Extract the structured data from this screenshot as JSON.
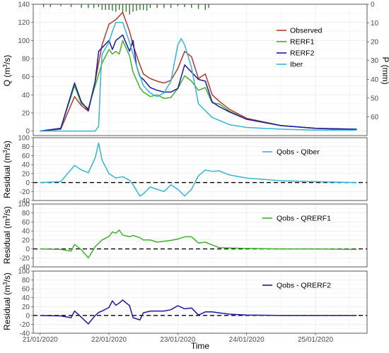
{
  "chart_data": [
    {
      "type": "line",
      "panel": "discharge",
      "ylabel": "Q (m3/s)",
      "ylim": [
        -5,
        140
      ],
      "yticks": [
        0,
        20,
        40,
        60,
        80,
        100,
        120,
        140
      ],
      "y2label": "P (mm)",
      "y2lim": [
        0,
        70
      ],
      "y2ticks": [
        0,
        10,
        20,
        30,
        40,
        50,
        60
      ],
      "x_start": "2020-01-21T00:00",
      "xlim_days": [
        -0.1,
        4.75
      ],
      "xticks": [
        "21/01/2020",
        "22/01/2020",
        "23/01/2020",
        "24/01/2020",
        "25/01/2020"
      ],
      "grid": true,
      "legend_position": "right",
      "precipitation_mm": [
        [
          0.05,
          1.5
        ],
        [
          0.15,
          1.5
        ],
        [
          0.3,
          1
        ],
        [
          0.45,
          1.5
        ],
        [
          0.6,
          2
        ],
        [
          0.7,
          2
        ],
        [
          0.78,
          2
        ],
        [
          0.85,
          1.5
        ],
        [
          0.9,
          3
        ],
        [
          0.95,
          3
        ],
        [
          1.0,
          3
        ],
        [
          1.05,
          3.5
        ],
        [
          1.1,
          4
        ],
        [
          1.15,
          3
        ],
        [
          1.2,
          5
        ],
        [
          1.25,
          4
        ],
        [
          1.3,
          5.5
        ],
        [
          1.35,
          4
        ],
        [
          1.4,
          3.5
        ],
        [
          1.45,
          3
        ],
        [
          1.5,
          3
        ],
        [
          1.55,
          3.5
        ],
        [
          1.6,
          2
        ],
        [
          1.7,
          2
        ],
        [
          1.8,
          2
        ],
        [
          1.9,
          2
        ],
        [
          2.0,
          1
        ],
        [
          2.1,
          1.5
        ],
        [
          2.2,
          2
        ],
        [
          2.3,
          2.5
        ],
        [
          2.4,
          3
        ],
        [
          2.45,
          2
        ]
      ],
      "series": [
        {
          "name": "Observed",
          "color": "#b5382b",
          "x": [
            0,
            0.3,
            0.5,
            0.6,
            0.7,
            0.8,
            0.9,
            1,
            1.1,
            1.2,
            1.3,
            1.35,
            1.45,
            1.5,
            1.6,
            1.7,
            1.8,
            1.9,
            2,
            2.1,
            2.2,
            2.3,
            2.4,
            2.5,
            2.6,
            2.75,
            3,
            3.5,
            4,
            4.6
          ],
          "y": [
            0,
            2,
            38,
            28,
            22,
            55,
            95,
            118,
            123,
            131,
            110,
            95,
            73,
            63,
            58,
            55,
            53,
            56,
            69,
            88,
            82,
            58,
            63,
            40,
            33,
            24,
            14,
            6,
            3,
            1
          ]
        },
        {
          "name": "RERF1",
          "color": "#3fb22a",
          "x": [
            0,
            0.3,
            0.5,
            0.6,
            0.7,
            0.8,
            0.9,
            1,
            1.05,
            1.1,
            1.15,
            1.2,
            1.3,
            1.35,
            1.45,
            1.5,
            1.6,
            1.7,
            1.8,
            1.9,
            2,
            2.1,
            2.2,
            2.3,
            2.4,
            2.5,
            2.6,
            2.75,
            3,
            3.5,
            4,
            4.6
          ],
          "y": [
            0,
            3,
            50,
            30,
            25,
            50,
            75,
            90,
            85,
            88,
            85,
            100,
            83,
            65,
            48,
            43,
            38,
            40,
            36,
            37,
            47,
            61,
            55,
            45,
            48,
            31,
            30,
            22,
            13,
            6,
            3,
            2
          ]
        },
        {
          "name": "RERF2",
          "color": "#1a1aa6",
          "x": [
            0,
            0.3,
            0.5,
            0.6,
            0.7,
            0.8,
            0.85,
            0.9,
            1,
            1.05,
            1.1,
            1.15,
            1.2,
            1.3,
            1.35,
            1.4,
            1.45,
            1.5,
            1.6,
            1.7,
            1.8,
            1.9,
            2,
            2.1,
            2.2,
            2.3,
            2.4,
            2.5,
            2.6,
            2.75,
            3,
            3.5,
            4,
            4.6
          ],
          "y": [
            0,
            3,
            53,
            32,
            23,
            55,
            88,
            92,
            100,
            90,
            100,
            103,
            106,
            88,
            100,
            72,
            60,
            57,
            48,
            45,
            43,
            43,
            47,
            73,
            65,
            57,
            55,
            32,
            27,
            21,
            13,
            6,
            3,
            2
          ]
        },
        {
          "name": "Iber",
          "color": "#33b5d9",
          "x": [
            0,
            0.3,
            0.6,
            0.8,
            0.85,
            0.88,
            0.9,
            1,
            1.05,
            1.1,
            1.2,
            1.3,
            1.4,
            1.5,
            1.6,
            1.7,
            1.8,
            1.9,
            2,
            2.05,
            2.1,
            2.2,
            2.3,
            2.5,
            2.75,
            3,
            3.5,
            4,
            4.6
          ],
          "y": [
            0,
            0,
            0,
            0,
            5,
            60,
            85,
            98,
            110,
            120,
            120,
            98,
            72,
            50,
            42,
            38,
            42,
            55,
            95,
            102,
            95,
            70,
            30,
            15,
            7,
            4,
            2,
            1,
            1
          ]
        }
      ]
    },
    {
      "type": "line",
      "panel": "residual-iber",
      "ylabel": "Residual (m3/s)",
      "ylim": [
        -40,
        100
      ],
      "yticks": [
        -40,
        -20,
        0,
        20,
        40,
        60,
        80,
        100
      ],
      "reference_line": 0,
      "series": [
        {
          "name": "Qobs - QIber",
          "color": "#33b5d9",
          "x": [
            0,
            0.3,
            0.5,
            0.6,
            0.7,
            0.8,
            0.85,
            0.9,
            1,
            1.05,
            1.1,
            1.2,
            1.3,
            1.35,
            1.45,
            1.5,
            1.6,
            1.7,
            1.8,
            1.9,
            2,
            2.1,
            2.2,
            2.3,
            2.4,
            2.5,
            2.6,
            2.75,
            3,
            3.5,
            4,
            4.6
          ],
          "y": [
            0,
            2,
            38,
            28,
            22,
            55,
            88,
            50,
            20,
            15,
            10,
            13,
            5,
            -5,
            -30,
            -25,
            -10,
            -15,
            -20,
            -5,
            -15,
            -30,
            -15,
            15,
            28,
            25,
            26,
            17,
            10,
            4,
            2,
            0
          ]
        }
      ]
    },
    {
      "type": "line",
      "panel": "residual-rerf1",
      "ylabel": "Residual (m3/s)",
      "ylim": [
        -40,
        100
      ],
      "yticks": [
        -40,
        -20,
        0,
        20,
        40,
        60,
        80,
        100
      ],
      "reference_line": 0,
      "series": [
        {
          "name": "Qobs - QRERF1",
          "color": "#3fb22a",
          "x": [
            0,
            0.3,
            0.45,
            0.5,
            0.6,
            0.7,
            0.8,
            0.9,
            1,
            1.05,
            1.1,
            1.15,
            1.2,
            1.3,
            1.35,
            1.45,
            1.5,
            1.6,
            1.7,
            1.8,
            1.9,
            2,
            2.1,
            2.2,
            2.3,
            2.4,
            2.5,
            2.6,
            2.75,
            3,
            3.5,
            4,
            4.6
          ],
          "y": [
            0,
            -1,
            -5,
            10,
            -2,
            -20,
            5,
            20,
            28,
            38,
            35,
            42,
            31,
            27,
            30,
            25,
            20,
            20,
            15,
            17,
            19,
            22,
            27,
            27,
            13,
            15,
            9,
            3,
            2,
            1,
            0,
            0,
            -1
          ]
        }
      ]
    },
    {
      "type": "line",
      "panel": "residual-rerf2",
      "ylabel": "Residual (m3/s)",
      "ylim": [
        -40,
        100
      ],
      "yticks": [
        -40,
        -20,
        0,
        20,
        40,
        60,
        80,
        100
      ],
      "reference_line": 0,
      "series": [
        {
          "name": "Qobs - QRERF2",
          "color": "#1a1aa6",
          "x": [
            0,
            0.3,
            0.45,
            0.5,
            0.6,
            0.7,
            0.8,
            0.85,
            0.9,
            1,
            1.05,
            1.1,
            1.15,
            1.2,
            1.3,
            1.35,
            1.45,
            1.5,
            1.6,
            1.7,
            1.8,
            1.9,
            2,
            2.1,
            2.2,
            2.3,
            2.4,
            2.5,
            2.6,
            2.75,
            3,
            3.5,
            4,
            4.6
          ],
          "y": [
            0,
            -1,
            -5,
            10,
            -4,
            -19,
            0,
            7,
            10,
            18,
            33,
            23,
            28,
            35,
            22,
            -5,
            -10,
            6,
            10,
            10,
            10,
            13,
            22,
            15,
            17,
            1,
            8,
            8,
            6,
            3,
            1,
            0,
            0,
            0
          ]
        }
      ]
    }
  ],
  "labels": {
    "y_discharge_prefix": "Q (m",
    "y_discharge_suffix": "/s)",
    "y_precip": "P (mm)",
    "y_residual_prefix": "Residual (m",
    "y_residual_suffix": "/s)",
    "unit_sup": "3",
    "x_axis": "Time"
  }
}
